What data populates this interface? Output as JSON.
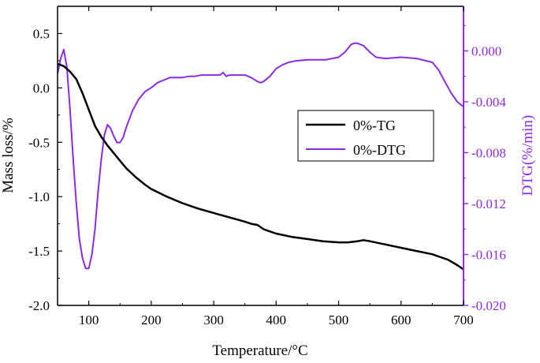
{
  "chart_data": {
    "type": "line",
    "xlabel": "Temperature/°C",
    "ylabel_left": "Mass loss/%",
    "ylabel_right": "DTG(%/min)",
    "xlim": [
      50,
      700
    ],
    "ylim_left": [
      -2.0,
      0.75
    ],
    "ylim_right": [
      -0.02,
      0.0035
    ],
    "x_ticks": [
      100,
      200,
      300,
      400,
      500,
      600,
      700
    ],
    "x_tick_labels": [
      "100",
      "200",
      "300",
      "400",
      "500",
      "600",
      "700"
    ],
    "y_left_ticks": [
      0.5,
      0.0,
      -0.5,
      -1.0,
      -1.5,
      -2.0
    ],
    "y_left_tick_labels": [
      "0.5",
      "0.0",
      "-0.5",
      "-1.0",
      "-1.5",
      "-2.0"
    ],
    "y_right_ticks": [
      0.0,
      -0.004,
      -0.008,
      -0.012,
      -0.016,
      -0.02
    ],
    "y_right_tick_labels": [
      "0.000",
      "-0.004",
      "-0.008",
      "-0.012",
      "-0.016",
      "-0.020"
    ],
    "legend_position": "center-right",
    "grid": false,
    "colors": {
      "tg": "#000000",
      "dtg": "#8a2be2",
      "axis": "#000000",
      "right_axis": "#8a2be2"
    },
    "series": [
      {
        "name": "0%-TG",
        "axis": "left",
        "x": [
          50,
          60,
          70,
          80,
          90,
          100,
          110,
          120,
          130,
          140,
          150,
          160,
          175,
          190,
          200,
          225,
          250,
          275,
          300,
          325,
          350,
          360,
          370,
          380,
          390,
          400,
          425,
          450,
          475,
          500,
          515,
          530,
          540,
          550,
          575,
          600,
          625,
          650,
          660,
          675,
          690,
          700
        ],
        "y": [
          0.22,
          0.2,
          0.15,
          0.08,
          -0.05,
          -0.2,
          -0.35,
          -0.45,
          -0.53,
          -0.6,
          -0.67,
          -0.74,
          -0.82,
          -0.89,
          -0.93,
          -1.0,
          -1.06,
          -1.11,
          -1.15,
          -1.19,
          -1.23,
          -1.25,
          -1.26,
          -1.3,
          -1.32,
          -1.34,
          -1.37,
          -1.39,
          -1.41,
          -1.42,
          -1.42,
          -1.41,
          -1.4,
          -1.41,
          -1.44,
          -1.47,
          -1.5,
          -1.53,
          -1.55,
          -1.58,
          -1.63,
          -1.67
        ]
      },
      {
        "name": "0%-DTG",
        "axis": "right",
        "x": [
          50,
          55,
          60,
          65,
          70,
          75,
          80,
          85,
          90,
          95,
          100,
          105,
          110,
          115,
          120,
          125,
          130,
          135,
          140,
          145,
          150,
          155,
          160,
          170,
          180,
          190,
          200,
          210,
          220,
          230,
          240,
          250,
          260,
          270,
          280,
          290,
          300,
          310,
          315,
          320,
          325,
          340,
          350,
          360,
          370,
          375,
          380,
          390,
          400,
          410,
          420,
          430,
          450,
          480,
          500,
          510,
          520,
          525,
          530,
          540,
          550,
          560,
          575,
          600,
          625,
          650,
          660,
          670,
          680,
          690,
          700
        ],
        "y": [
          -0.0018,
          -0.0006,
          0.0001,
          -0.0013,
          -0.0046,
          -0.0085,
          -0.012,
          -0.0148,
          -0.0163,
          -0.0171,
          -0.0171,
          -0.016,
          -0.014,
          -0.011,
          -0.0085,
          -0.0066,
          -0.0058,
          -0.0061,
          -0.0067,
          -0.0072,
          -0.0072,
          -0.0068,
          -0.006,
          -0.0047,
          -0.0038,
          -0.0032,
          -0.0029,
          -0.0025,
          -0.0023,
          -0.0021,
          -0.0021,
          -0.0021,
          -0.002,
          -0.002,
          -0.0019,
          -0.0019,
          -0.0019,
          -0.0019,
          -0.0017,
          -0.002,
          -0.0019,
          -0.0019,
          -0.0019,
          -0.0021,
          -0.0024,
          -0.0025,
          -0.0024,
          -0.002,
          -0.0014,
          -0.0011,
          -0.0009,
          -0.0008,
          -0.0007,
          -0.0007,
          -0.0005,
          -0.0001,
          0.0005,
          0.0006,
          0.0006,
          0.0004,
          -0.0001,
          -0.0005,
          -0.0006,
          -0.0005,
          -0.0006,
          -0.0009,
          -0.0015,
          -0.0024,
          -0.0033,
          -0.004,
          -0.0044
        ]
      }
    ]
  }
}
